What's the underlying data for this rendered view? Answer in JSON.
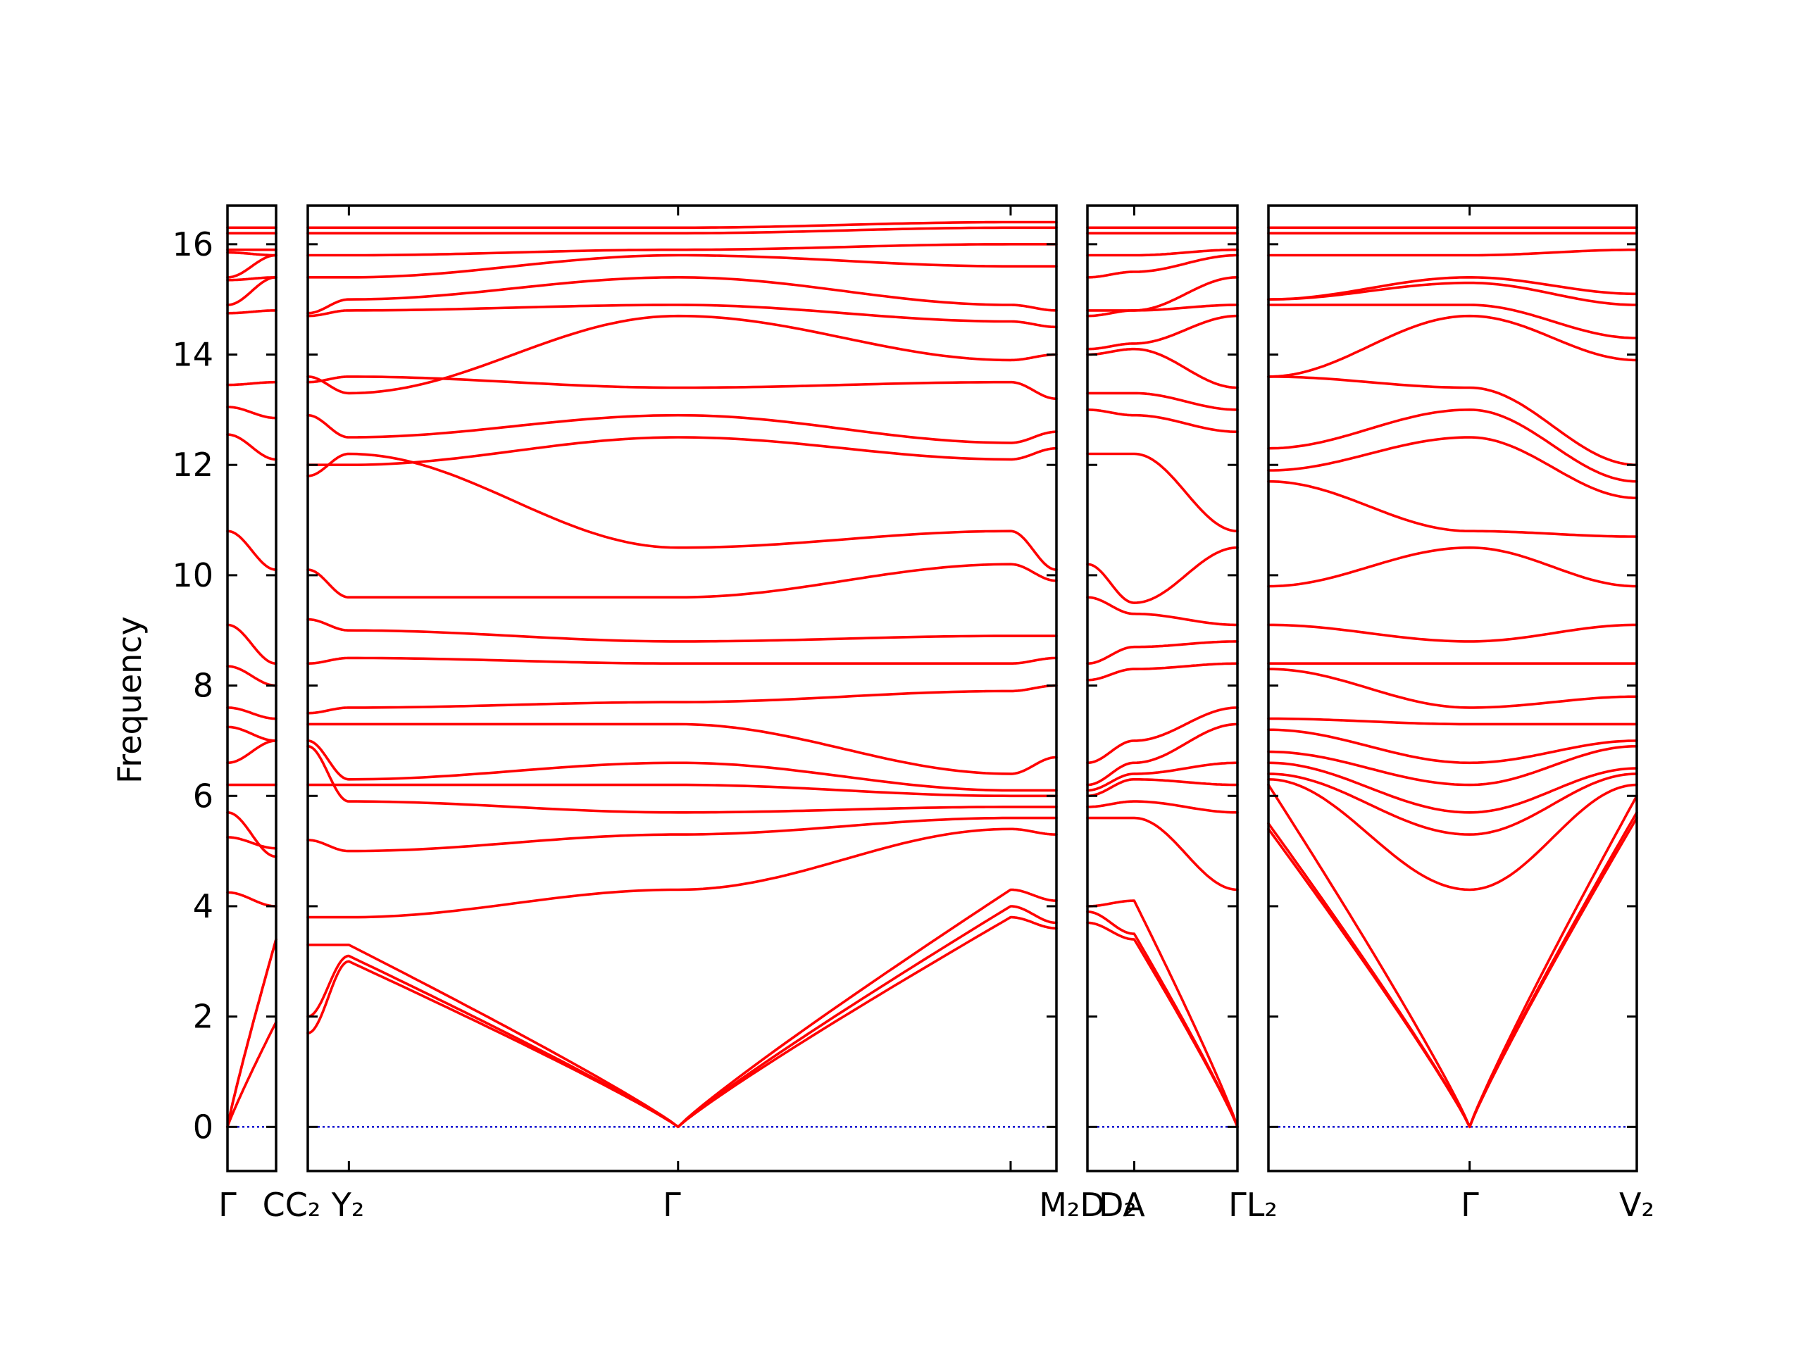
{
  "chart_data": {
    "type": "line",
    "title": "",
    "ylabel": "Frequency",
    "xlabel": "",
    "ylim": [
      -0.8,
      16.7
    ],
    "y_ticks": [
      0,
      2,
      4,
      6,
      8,
      10,
      12,
      14,
      16
    ],
    "grid": false,
    "colors": {
      "bands": "#ff0000",
      "zero_line": "#0000cc",
      "frame": "#000000"
    },
    "x_tick_labels": [
      "Γ",
      "C|C₂",
      "Y₂",
      "Γ",
      "M₂|D",
      "D₂",
      "A",
      "Γ|L₂",
      "Γ",
      "V₂"
    ],
    "segments": [
      {
        "x_ticks": [
          0,
          1
        ],
        "band_count": 24,
        "bands_start": [
          0,
          0,
          0,
          4.25,
          5.25,
          5.7,
          6.2,
          6.6,
          7.25,
          7.6,
          8.35,
          9.1,
          10.8,
          12.55,
          13.05,
          13.45,
          14.75,
          14.9,
          15.35,
          15.4,
          15.85,
          15.9,
          16.2,
          16.3
        ],
        "bands_end": [
          1.9,
          3.4,
          3.4,
          4.0,
          5.05,
          4.9,
          6.2,
          7.0,
          7.0,
          7.4,
          8.0,
          8.4,
          10.1,
          12.1,
          12.85,
          13.5,
          14.8,
          15.4,
          15.4,
          15.8,
          15.8,
          15.9,
          16.2,
          16.3
        ]
      },
      {
        "x_ticks": [
          0,
          0.0549,
          0.4946,
          0.9388,
          1
        ],
        "bands": [
          [
            1.7,
            3.0,
            0.0,
            3.8,
            3.6
          ],
          [
            2.0,
            3.1,
            0.0,
            4.0,
            3.7
          ],
          [
            3.3,
            3.3,
            0.0,
            4.3,
            4.1
          ],
          [
            3.8,
            3.8,
            4.3,
            5.4,
            5.3
          ],
          [
            5.2,
            5.0,
            5.3,
            5.6,
            5.6
          ],
          [
            6.9,
            5.9,
            5.7,
            5.8,
            5.8
          ],
          [
            6.2,
            6.2,
            6.2,
            6.0,
            6.0
          ],
          [
            7.0,
            6.3,
            6.6,
            6.1,
            6.1
          ],
          [
            7.3,
            7.3,
            7.3,
            6.4,
            6.7
          ],
          [
            7.5,
            7.6,
            7.7,
            7.9,
            8.0
          ],
          [
            8.4,
            8.5,
            8.4,
            8.4,
            8.5
          ],
          [
            9.2,
            9.0,
            8.8,
            8.9,
            8.9
          ],
          [
            10.1,
            9.6,
            9.6,
            10.2,
            9.9
          ],
          [
            11.8,
            12.2,
            10.5,
            10.8,
            10.1
          ],
          [
            12.0,
            12.0,
            12.5,
            12.1,
            12.3
          ],
          [
            12.9,
            12.5,
            12.9,
            12.4,
            12.6
          ],
          [
            13.5,
            13.6,
            13.4,
            13.5,
            13.2
          ],
          [
            13.6,
            13.3,
            14.7,
            13.9,
            14.0
          ],
          [
            14.7,
            14.8,
            14.9,
            14.6,
            14.5
          ],
          [
            14.75,
            15.0,
            15.4,
            14.9,
            14.8
          ],
          [
            15.4,
            15.4,
            15.8,
            15.6,
            15.6
          ],
          [
            15.8,
            15.8,
            15.9,
            16.0,
            16.0
          ],
          [
            16.2,
            16.2,
            16.2,
            16.3,
            16.3
          ],
          [
            16.3,
            16.3,
            16.3,
            16.4,
            16.4
          ]
        ]
      },
      {
        "x_ticks": [
          0,
          0.3119,
          1
        ],
        "bands": [
          [
            3.7,
            3.4,
            0.0
          ],
          [
            3.9,
            3.5,
            0.0
          ],
          [
            4.0,
            4.1,
            0.0
          ],
          [
            5.6,
            5.6,
            4.3
          ],
          [
            5.8,
            5.9,
            5.7
          ],
          [
            6.0,
            6.3,
            6.2
          ],
          [
            6.1,
            6.4,
            6.6
          ],
          [
            6.2,
            6.6,
            7.3
          ],
          [
            6.6,
            7.0,
            7.6
          ],
          [
            8.1,
            8.3,
            8.4
          ],
          [
            8.4,
            8.7,
            8.8
          ],
          [
            9.6,
            9.3,
            9.1
          ],
          [
            10.2,
            9.5,
            10.5
          ],
          [
            12.2,
            12.2,
            10.8
          ],
          [
            13.0,
            12.9,
            12.6
          ],
          [
            13.3,
            13.3,
            13.0
          ],
          [
            14.0,
            14.1,
            13.4
          ],
          [
            14.1,
            14.2,
            14.7
          ],
          [
            14.7,
            14.8,
            14.9
          ],
          [
            14.8,
            14.8,
            15.4
          ],
          [
            15.4,
            15.5,
            15.8
          ],
          [
            15.8,
            15.8,
            15.9
          ],
          [
            16.2,
            16.2,
            16.2
          ],
          [
            16.3,
            16.3,
            16.3
          ]
        ]
      },
      {
        "x_ticks": [
          0,
          0.5462,
          1
        ],
        "bands": [
          [
            5.4,
            0.0,
            5.6
          ],
          [
            5.5,
            0.0,
            5.7
          ],
          [
            6.2,
            0.0,
            6.0
          ],
          [
            6.3,
            4.3,
            6.2
          ],
          [
            6.4,
            5.3,
            6.4
          ],
          [
            6.6,
            5.7,
            6.5
          ],
          [
            6.8,
            6.2,
            6.9
          ],
          [
            7.2,
            6.6,
            7.0
          ],
          [
            7.4,
            7.3,
            7.3
          ],
          [
            8.3,
            7.6,
            7.8
          ],
          [
            8.4,
            8.4,
            8.4
          ],
          [
            9.1,
            8.8,
            9.1
          ],
          [
            9.8,
            10.5,
            9.8
          ],
          [
            11.7,
            10.8,
            10.7
          ],
          [
            11.9,
            12.5,
            11.4
          ],
          [
            12.3,
            13.0,
            11.7
          ],
          [
            13.6,
            13.4,
            12.0
          ],
          [
            13.6,
            14.7,
            13.9
          ],
          [
            14.9,
            14.9,
            14.3
          ],
          [
            15.0,
            15.3,
            14.9
          ],
          [
            15.0,
            15.4,
            15.1
          ],
          [
            15.8,
            15.8,
            15.9
          ],
          [
            16.2,
            16.2,
            16.2
          ],
          [
            16.3,
            16.3,
            16.3
          ]
        ]
      }
    ]
  }
}
